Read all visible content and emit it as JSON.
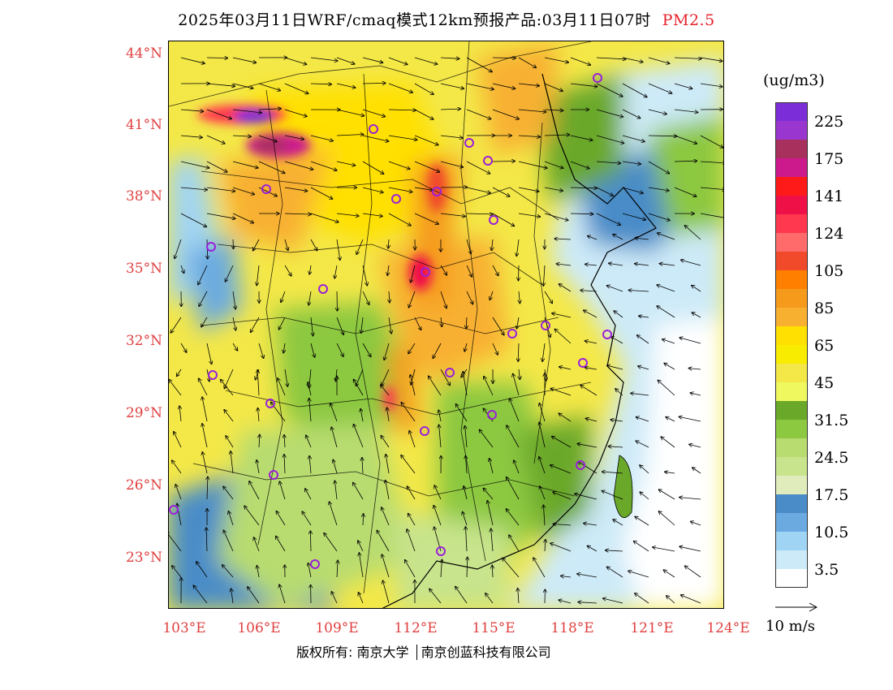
{
  "title": {
    "main": "2025年03月11日WRF/cmaq模式12km预报产品:03月11日07时",
    "pollutant": "PM2.5",
    "pollutant_color": "#e8202a"
  },
  "map": {
    "lat_labels": [
      "44°N",
      "41°N",
      "38°N",
      "35°N",
      "32°N",
      "29°N",
      "26°N",
      "23°N"
    ],
    "lon_labels": [
      "103°E",
      "106°E",
      "109°E",
      "112°E",
      "115°E",
      "118°E",
      "121°E",
      "124°E"
    ],
    "label_color": "#e04040",
    "cities_marked": true,
    "overlays": [
      "pm25-concentration-field",
      "wind-vectors",
      "province-boundaries",
      "coastline"
    ]
  },
  "legend": {
    "unit": "(ug/m3)",
    "colors": [
      "#7b2ed8",
      "#9a36d0",
      "#a8305c",
      "#cc1a8c",
      "#ff1a1a",
      "#f01048",
      "#ff3850",
      "#ff6a6a",
      "#f04a2a",
      "#ff8000",
      "#f59a1a",
      "#f8b030",
      "#ffe000",
      "#f8ec00",
      "#f4e848",
      "#f0f860",
      "#6aa82a",
      "#8cc840",
      "#b8dc70",
      "#c8e48c",
      "#e0ecbc",
      "#4a8cc8",
      "#6aaae0",
      "#a0d4f4",
      "#cdeaf8",
      "#ffffff"
    ],
    "labels": [
      "225",
      "175",
      "141",
      "124",
      "105",
      "85",
      "65",
      "45",
      "31.5",
      "24.5",
      "17.5",
      "10.5",
      "3.5"
    ]
  },
  "wind_scale": {
    "label": "10 m/s"
  },
  "footer": {
    "credit_left": "版权所有: 南京大学",
    "credit_right": "南京创蓝科技有限公司"
  }
}
